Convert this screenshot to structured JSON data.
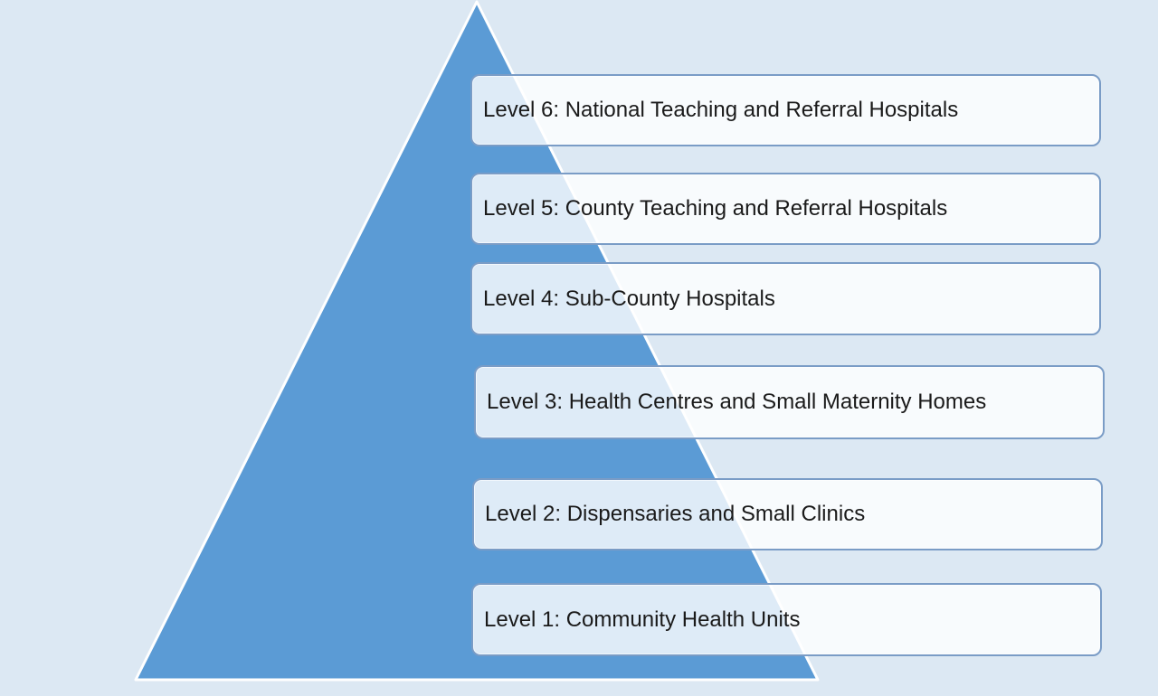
{
  "colors": {
    "background": "#dce8f3",
    "pyramid_fill": "#5b9bd5",
    "pyramid_edge": "#ffffff",
    "box_border": "#7a9cc6",
    "box_fill": "#f5f9fc"
  },
  "levels": [
    {
      "label": "Level 6: National Teaching and Referral  Hospitals"
    },
    {
      "label": "Level 5: County Teaching and Referral  Hospitals"
    },
    {
      "label": "Level 4: Sub-County Hospitals"
    },
    {
      "label": "Level 3: Health Centres  and Small Maternity Homes"
    },
    {
      "label": "Level 2: Dispensaries and Small Clinics"
    },
    {
      "label": "Level 1: Community Health Units"
    }
  ]
}
